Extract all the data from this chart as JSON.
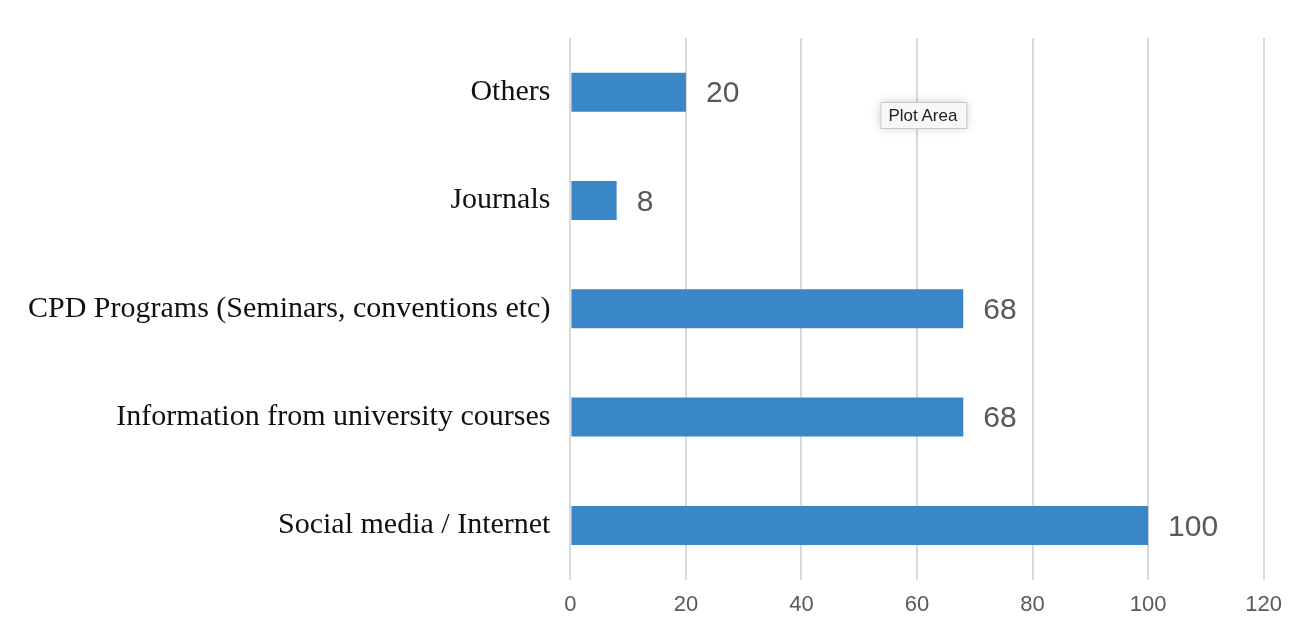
{
  "chart_data": {
    "type": "bar",
    "orientation": "horizontal",
    "categories": [
      "Others",
      "Journals",
      "CPD Programs (Seminars, conventions etc)",
      "Information from university courses",
      "Social media / Internet"
    ],
    "values": [
      20,
      8,
      68,
      68,
      100
    ],
    "color": "#3a87c8",
    "xlim": [
      0,
      120
    ],
    "xticks": [
      0,
      20,
      40,
      60,
      80,
      100,
      120
    ],
    "grid": "x",
    "data_labels": true,
    "legend": false,
    "annotations": [
      "Plot Area"
    ]
  }
}
